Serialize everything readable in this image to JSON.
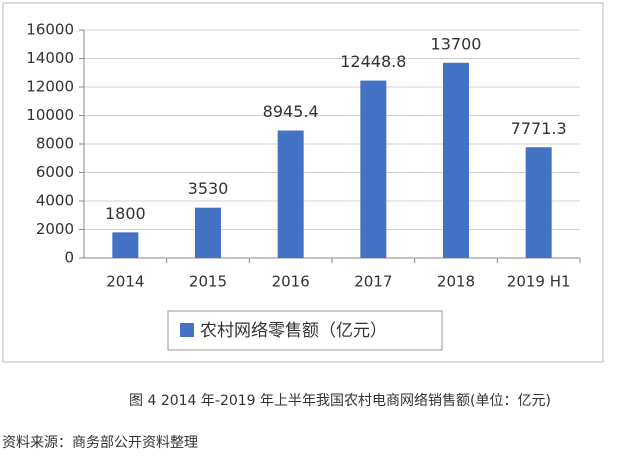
{
  "chart_data": {
    "type": "bar",
    "categories": [
      "2014",
      "2015",
      "2016",
      "2017",
      "2018",
      "2019 H1"
    ],
    "series": [
      {
        "name": "农村网络零售额（亿元）",
        "color": "#4472c4",
        "values": [
          1800,
          3530,
          8945.4,
          12448.8,
          13700,
          7771.3
        ]
      }
    ],
    "ylim": [
      0,
      16000
    ],
    "yticks": [
      0,
      2000,
      4000,
      6000,
      8000,
      10000,
      12000,
      14000,
      16000
    ],
    "grid": true
  },
  "caption": "图 4 2014 年-2019 年上半年我国农村电商网络销售额(单位：亿元)",
  "source": "资料来源：商务部公开资料整理"
}
